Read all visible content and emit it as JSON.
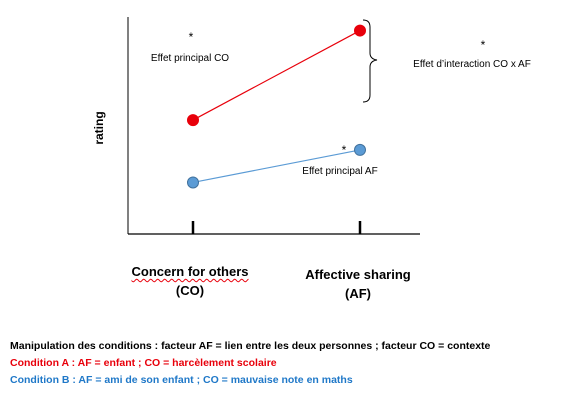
{
  "chart_data": {
    "type": "line",
    "ylabel": "rating",
    "categories": [
      "Concern for others (CO)",
      "Affective sharing (AF)"
    ],
    "category_labels": [
      {
        "line1": "Concern for others",
        "line2": "(CO)"
      },
      {
        "line1": "Affective sharing",
        "line2": "(AF)"
      }
    ],
    "series": [
      {
        "color": "#e8000b",
        "values": [
          4.2,
          7.5
        ]
      },
      {
        "color": "#5b9bd5",
        "values": [
          1.9,
          3.1
        ]
      }
    ],
    "ylim": [
      0,
      8
    ],
    "grid": false,
    "annotations": {
      "co": {
        "star": "*",
        "label": "Effet principal CO"
      },
      "af": {
        "star": "*",
        "label": "Effet principal AF"
      },
      "interaction": {
        "star": "*",
        "label": "Effet d’interaction CO x AF"
      }
    }
  },
  "notes": {
    "manipulation": "Manipulation des conditions : facteur AF = lien entre les deux personnes ; facteur CO = contexte",
    "condition_a": "Condition A : AF = enfant ; CO = harcèlement scolaire",
    "condition_b": "Condition B : AF = ami de son enfant ; CO = mauvaise note en maths"
  }
}
